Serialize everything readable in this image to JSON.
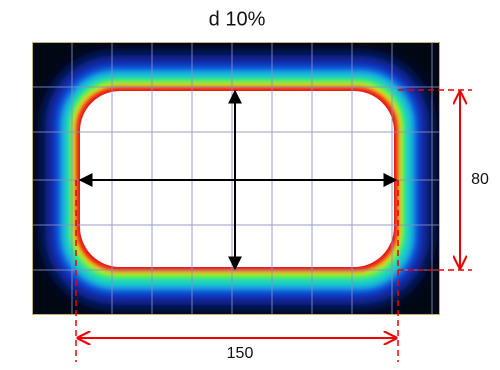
{
  "title": "d 10%",
  "dimensions": {
    "height": 80,
    "width": 150
  }
}
